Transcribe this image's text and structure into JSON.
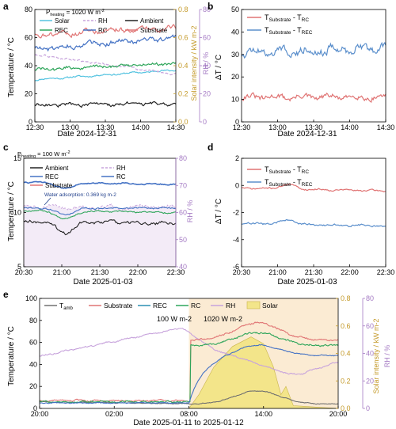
{
  "panels": {
    "a": {
      "label": "a",
      "annotation": "P_heating = 1020 W m-2",
      "annotation_main": "P",
      "annotation_sub": "heating",
      "annotation_value": " = 1020 W m",
      "annotation_sup": "-2",
      "xlabel": "Date 2024-12-31",
      "ylabel": "Temperature / °C",
      "y2label": "Solar intensity / kW m-2",
      "y3label": "RH / %"
    },
    "b": {
      "label": "b",
      "xlabel": "Date 2024-12-31",
      "ylabel": "ΔT / °C"
    },
    "c": {
      "label": "c",
      "annotation_main": "P",
      "annotation_sub": "heating",
      "annotation_value": " = 100 W m",
      "annotation_sup": "-2",
      "xlabel": "Date 2025-01-03",
      "ylabel": "Temperature / °C",
      "y3label": "RH / %",
      "note": "Water adsorption: 0.369 kg m-2"
    },
    "d": {
      "label": "d",
      "xlabel": "Date 2025-01-03",
      "ylabel": "ΔT / °C"
    },
    "e": {
      "label": "e",
      "xlabel": "Date 2025-01-11 to 2025-01-12",
      "ylabel": "Temperature / °C",
      "y2label": "Solar intensity / kW m-2",
      "y3label": "RH / %",
      "note1": "100 W m-2",
      "note2": "1020 W m-2"
    }
  },
  "colors": {
    "solar": "#54c3e0",
    "rec": "#2ea55a",
    "rc": "#4472c4",
    "substrate": "#e07474",
    "ambient": "#222222",
    "rh": "#c7a3dc",
    "solar_fill": "#f3e58a",
    "solar_axis": "#c49a2a",
    "rh_axis": "#a57bc4",
    "d_sub_rc": "#e07474",
    "d_sub_rec": "#5b8fcc",
    "heating_bg": "#fbebd3"
  },
  "chart_data": [
    {
      "panel": "a",
      "type": "line",
      "x_ticks": [
        "12:30",
        "13:00",
        "13:30",
        "14:00",
        "14:30"
      ],
      "xlim": [
        0,
        120
      ],
      "ylim": [
        0,
        80
      ],
      "y_ticks": [
        "0",
        "20",
        "40",
        "60",
        "80"
      ],
      "y2lim": [
        0,
        0.8
      ],
      "y2_ticks": [
        "0.0",
        "0.2",
        "0.4",
        "0.6",
        "0.8"
      ],
      "y3lim": [
        0,
        80
      ],
      "y3_ticks": [
        "0",
        "20",
        "40",
        "60",
        "80"
      ],
      "legend": [
        "Solar",
        "RH",
        "Ambient",
        "REC",
        "RC",
        "Substrate"
      ],
      "series": [
        {
          "name": "Solar",
          "axis": "y2",
          "start": 0.3,
          "end": 0.37,
          "noise": 0.01,
          "color_key": "solar"
        },
        {
          "name": "RH",
          "axis": "y3",
          "start": 48,
          "end": 34,
          "noise": 1.2,
          "dashed": true,
          "color_key": "rh"
        },
        {
          "name": "Ambient",
          "axis": "y",
          "start": 12,
          "end": 13,
          "noise": 2,
          "color_key": "ambient"
        },
        {
          "name": "REC",
          "axis": "y",
          "start": 37,
          "end": 42,
          "noise": 2,
          "color_key": "rec"
        },
        {
          "name": "RC",
          "axis": "y",
          "start": 52,
          "end": 60,
          "noise": 3,
          "color_key": "rc"
        },
        {
          "name": "Substrate",
          "axis": "y",
          "start": 62,
          "end": 67,
          "noise": 3,
          "color_key": "substrate"
        }
      ]
    },
    {
      "panel": "b",
      "type": "line",
      "x_ticks": [
        "12:30",
        "13:00",
        "13:30",
        "14:00",
        "14:30"
      ],
      "xlim": [
        0,
        120
      ],
      "ylim": [
        0,
        50
      ],
      "y_ticks": [
        "0",
        "10",
        "20",
        "30",
        "40",
        "50"
      ],
      "legend": [
        "T_Substrate - T_RC",
        "T_Substrate - T_REC"
      ],
      "series": [
        {
          "name": "T_Substrate - T_RC",
          "start": 11,
          "end": 11,
          "noise": 2.2,
          "color_key": "d_sub_rc"
        },
        {
          "name": "T_Substrate - T_REC",
          "start": 31,
          "end": 33,
          "noise": 3.2,
          "color_key": "d_sub_rec"
        }
      ]
    },
    {
      "panel": "c",
      "type": "line",
      "x_ticks": [
        "20:30",
        "21:00",
        "21:30",
        "22:00",
        "22:30"
      ],
      "xlim": [
        0,
        120
      ],
      "ylim": [
        5,
        15
      ],
      "y_ticks": [
        "5",
        "10",
        "15"
      ],
      "y3lim": [
        40,
        80
      ],
      "y3_ticks": [
        "40",
        "50",
        "60",
        "70",
        "80"
      ],
      "legend": [
        "Ambient",
        "RH",
        "REC",
        "RC",
        "Substrate"
      ],
      "series": [
        {
          "name": "RH",
          "axis": "y3",
          "start": 62,
          "end": 62,
          "noise": 1.2,
          "color_key": "rh"
        },
        {
          "name": "Ambient",
          "axis": "y",
          "start": 9.2,
          "end": 9.0,
          "noise": 0.25,
          "dip": -1.0,
          "color_key": "ambient"
        },
        {
          "name": "REC",
          "axis": "y",
          "start": 10.2,
          "end": 10.0,
          "noise": 0.12,
          "dip": -0.7,
          "color_key": "rec"
        },
        {
          "name": "RC",
          "axis": "y",
          "start": 10.4,
          "end": 10.4,
          "noise": 0.12,
          "dip": -0.6,
          "color_key": "rc"
        },
        {
          "name": "Substrate",
          "axis": "y",
          "start": 12.8,
          "end": 12.6,
          "noise": 0.1,
          "dip": -0.5,
          "color_key": "rc"
        }
      ]
    },
    {
      "panel": "d",
      "type": "line",
      "x_ticks": [
        "20:30",
        "21:00",
        "21:30",
        "22:00",
        "22:30"
      ],
      "xlim": [
        0,
        120
      ],
      "ylim": [
        -6,
        2
      ],
      "y_ticks": [
        "-6",
        "-4",
        "-2",
        "0",
        "2"
      ],
      "legend": [
        "T_Substrate - T_RC",
        "T_Substrate - T_REC"
      ],
      "series": [
        {
          "name": "T_Substrate - T_RC",
          "start": -0.2,
          "end": -0.4,
          "noise": 0.1,
          "color_key": "d_sub_rc"
        },
        {
          "name": "T_Substrate - T_REC",
          "start": -2.8,
          "end": -3.0,
          "noise": 0.12,
          "color_key": "d_sub_rec"
        }
      ]
    },
    {
      "panel": "e",
      "type": "line",
      "x_ticks": [
        "20:00",
        "02:00",
        "08:00",
        "14:00",
        "20:00"
      ],
      "xlim": [
        0,
        24
      ],
      "heating_start": 12,
      "ylim": [
        0,
        100
      ],
      "y_ticks": [
        "0",
        "20",
        "40",
        "60",
        "80",
        "100"
      ],
      "y2lim": [
        0,
        0.8
      ],
      "y2_ticks": [
        "0.0",
        "0.2",
        "0.4",
        "0.6",
        "0.8"
      ],
      "y3lim": [
        0,
        80
      ],
      "y3_ticks": [
        "0",
        "20",
        "40",
        "60",
        "80"
      ],
      "legend": [
        "T_amb",
        "Substrate",
        "REC",
        "RC",
        "RH",
        "Solar"
      ],
      "solar_profile": [
        [
          12,
          0
        ],
        [
          12.8,
          0.1
        ],
        [
          14,
          0.3
        ],
        [
          15.5,
          0.45
        ],
        [
          17,
          0.52
        ],
        [
          18,
          0.47
        ],
        [
          18.8,
          0.3
        ],
        [
          19.4,
          0.1
        ],
        [
          19.8,
          0.16
        ],
        [
          20.4,
          0.02
        ],
        [
          24,
          0
        ]
      ]
    }
  ]
}
